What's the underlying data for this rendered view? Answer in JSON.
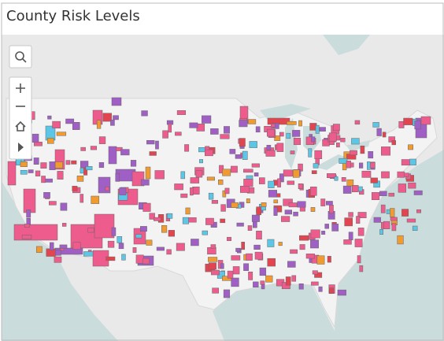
{
  "header": {
    "title": "County Risk Levels"
  }
}
